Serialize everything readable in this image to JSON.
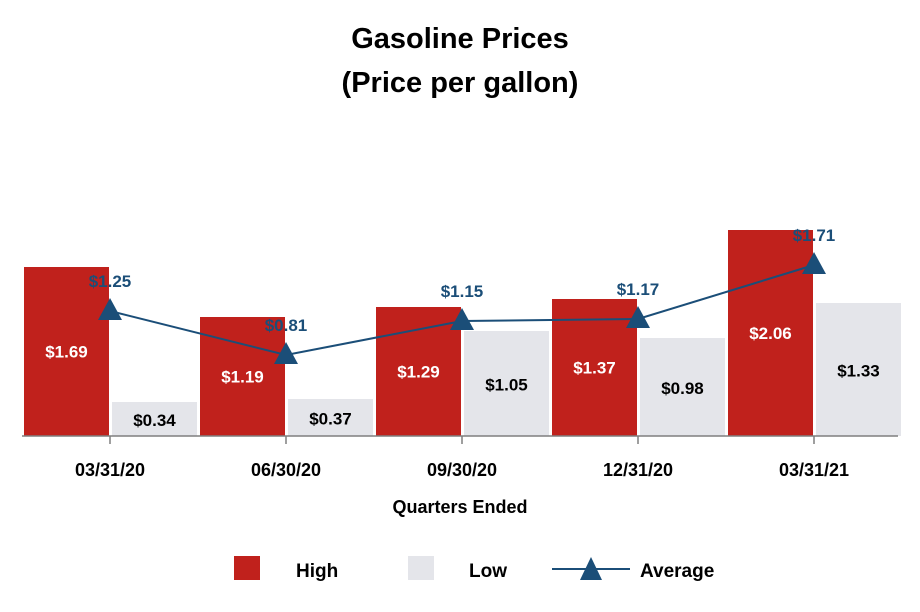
{
  "chart_data": {
    "type": "bar",
    "title_lines": [
      "Gasoline Prices",
      "(Price per gallon)"
    ],
    "xlabel": "Quarters Ended",
    "categories": [
      "03/31/20",
      "06/30/20",
      "09/30/20",
      "12/31/20",
      "03/31/21"
    ],
    "series": [
      {
        "name": "High",
        "kind": "bar",
        "color": "#c0211c",
        "values": [
          1.69,
          1.19,
          1.29,
          1.37,
          2.06
        ],
        "labels": [
          "$1.69",
          "$1.19",
          "$1.29",
          "$1.37",
          "$2.06"
        ]
      },
      {
        "name": "Low",
        "kind": "bar",
        "color": "#e4e5ea",
        "values": [
          0.34,
          0.37,
          1.05,
          0.98,
          1.33
        ],
        "labels": [
          "$0.34",
          "$0.37",
          "$1.05",
          "$0.98",
          "$1.33"
        ]
      },
      {
        "name": "Average",
        "kind": "line",
        "color": "#1b4e78",
        "values": [
          1.25,
          0.81,
          1.15,
          1.17,
          1.71
        ],
        "labels": [
          "$1.25",
          "$0.81",
          "$1.15",
          "$1.17",
          "$1.71"
        ]
      }
    ],
    "ylim": [
      0,
      2.5
    ],
    "grid": false,
    "legend_position": "bottom"
  }
}
